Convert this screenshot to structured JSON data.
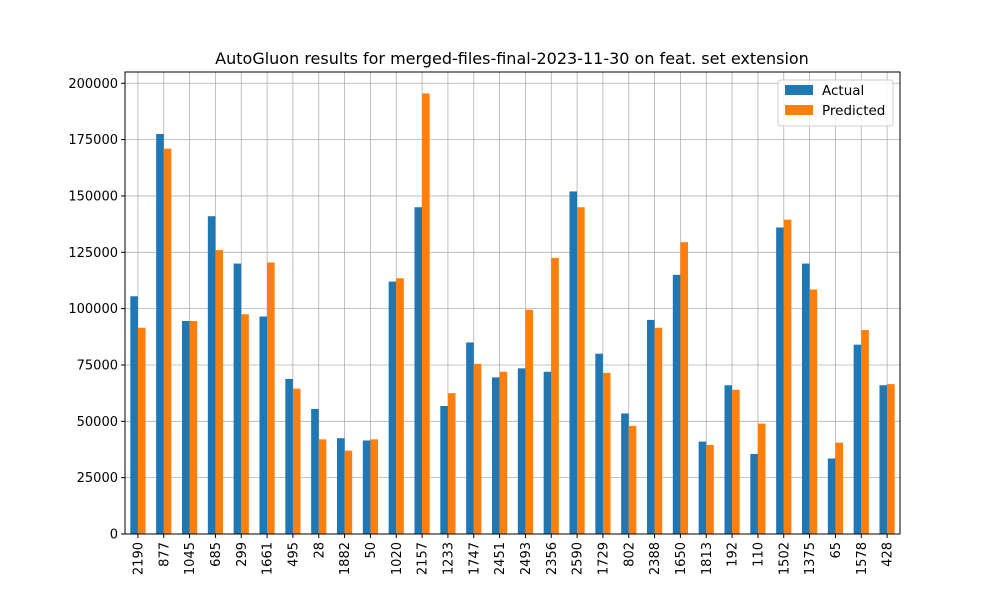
{
  "chart_data": {
    "type": "bar",
    "title": "AutoGluon results for merged-files-final-2023-11-30 on feat. set extension",
    "xlabel": "",
    "ylabel": "",
    "ylim": [
      0,
      205000
    ],
    "yticks": [
      0,
      25000,
      50000,
      75000,
      100000,
      125000,
      150000,
      175000,
      200000
    ],
    "grid": true,
    "legend_position": "top-right",
    "categories": [
      "2190",
      "877",
      "1045",
      "685",
      "299",
      "1661",
      "495",
      "28",
      "1882",
      "50",
      "1020",
      "2157",
      "1233",
      "1747",
      "2451",
      "2493",
      "2356",
      "2590",
      "1729",
      "802",
      "2388",
      "1650",
      "1813",
      "192",
      "110",
      "1502",
      "1375",
      "65",
      "1578",
      "428"
    ],
    "series": [
      {
        "name": "Actual",
        "color": "#1f77b4",
        "values": [
          105500,
          177500,
          94500,
          141000,
          120000,
          96500,
          68800,
          55500,
          42500,
          41500,
          112000,
          145000,
          56800,
          85000,
          69500,
          73500,
          72000,
          152000,
          80000,
          53500,
          95000,
          115000,
          41000,
          66000,
          35500,
          136000,
          120000,
          33500,
          84000,
          66000
        ]
      },
      {
        "name": "Predicted",
        "color": "#ff7f0e",
        "values": [
          91500,
          171000,
          94500,
          126000,
          97500,
          120500,
          64500,
          42000,
          37000,
          42000,
          113500,
          195500,
          62500,
          75500,
          72000,
          99500,
          122500,
          145000,
          71500,
          48000,
          91500,
          129500,
          39500,
          64000,
          49000,
          139500,
          108500,
          40500,
          90500,
          66500
        ]
      }
    ]
  }
}
